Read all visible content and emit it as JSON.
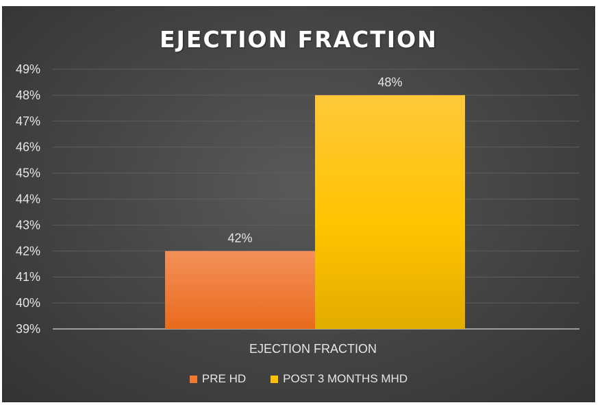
{
  "chart_data": {
    "type": "bar",
    "title": "EJECTION FRACTION",
    "categories": [
      "EJECTION FRACTION"
    ],
    "series": [
      {
        "name": "PRE HD",
        "values": [
          42
        ],
        "label": "42%",
        "color": "#f07830"
      },
      {
        "name": "POST 3 MONTHS MHD",
        "values": [
          48
        ],
        "label": "48%",
        "color": "#ffc000"
      }
    ],
    "ylim": [
      39,
      49
    ],
    "yticks": [
      "39%",
      "40%",
      "41%",
      "42%",
      "43%",
      "44%",
      "45%",
      "46%",
      "47%",
      "48%",
      "49%"
    ],
    "xlabel": "",
    "ylabel": "",
    "grid": true,
    "legend_position": "bottom"
  }
}
